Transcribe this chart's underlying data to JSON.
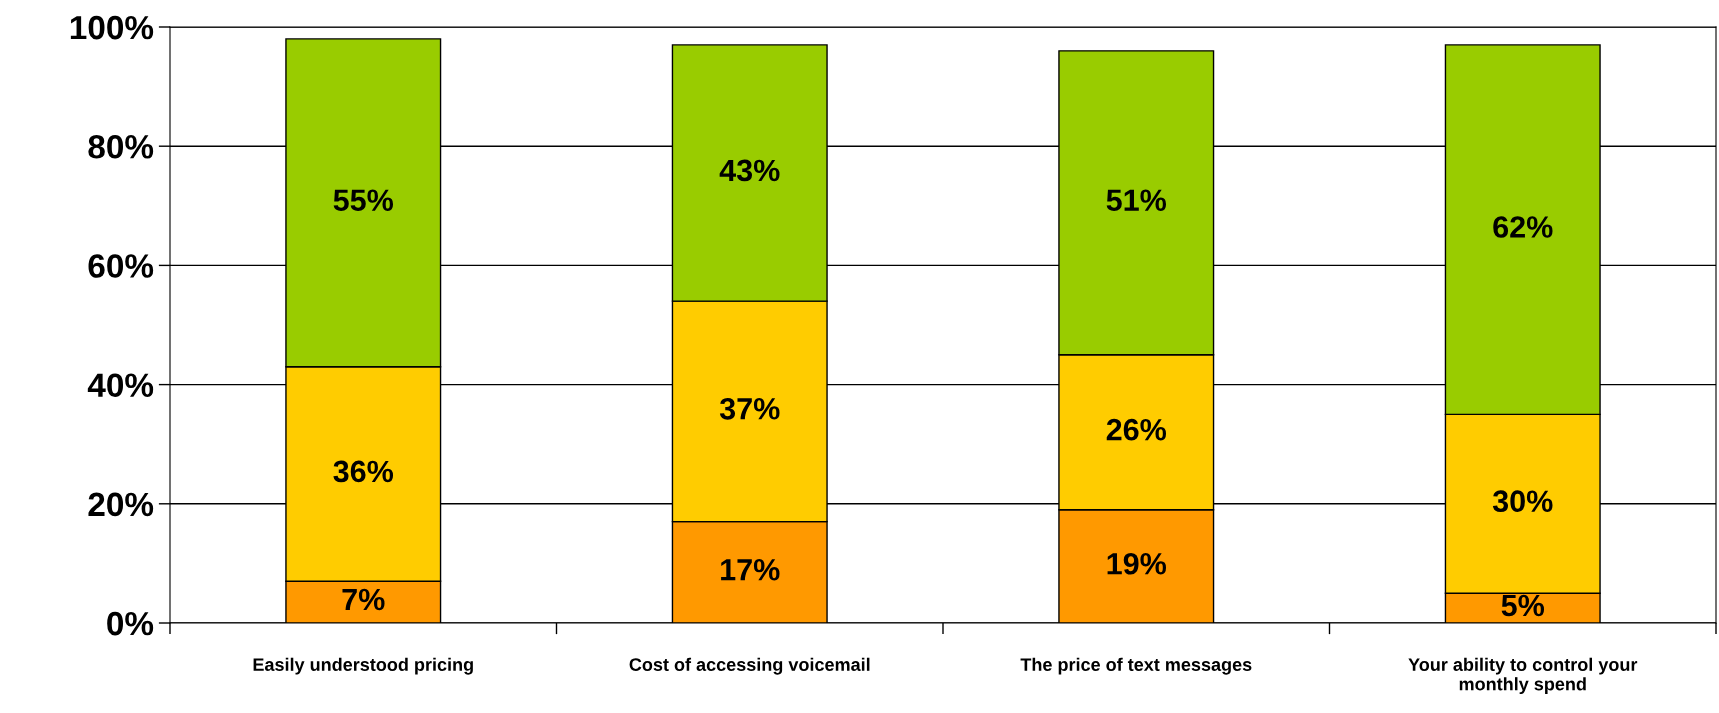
{
  "chart_data": {
    "type": "bar",
    "stacked": true,
    "categories": [
      "Easily understood pricing",
      "Cost of accessing voicemail",
      "The price of text messages",
      "Your ability to control your\nmonthly spend"
    ],
    "series": [
      {
        "color": "#ff9900",
        "values": [
          7,
          17,
          19,
          5
        ],
        "value_labels": [
          "7%",
          "17%",
          "19%",
          "5%"
        ]
      },
      {
        "color": "#ffcc00",
        "values": [
          36,
          37,
          26,
          30
        ],
        "value_labels": [
          "36%",
          "37%",
          "26%",
          "30%"
        ]
      },
      {
        "color": "#99cc00",
        "values": [
          55,
          43,
          51,
          62
        ],
        "value_labels": [
          "55%",
          "43%",
          "51%",
          "62%"
        ]
      }
    ],
    "ylim": [
      0,
      100
    ],
    "yticks": [
      {
        "value": 0,
        "label": "0%"
      },
      {
        "value": 20,
        "label": "20%"
      },
      {
        "value": 40,
        "label": "40%"
      },
      {
        "value": 60,
        "label": "60%"
      },
      {
        "value": 80,
        "label": "80%"
      },
      {
        "value": 100,
        "label": "100%"
      }
    ],
    "grid": "y",
    "legend": false
  }
}
